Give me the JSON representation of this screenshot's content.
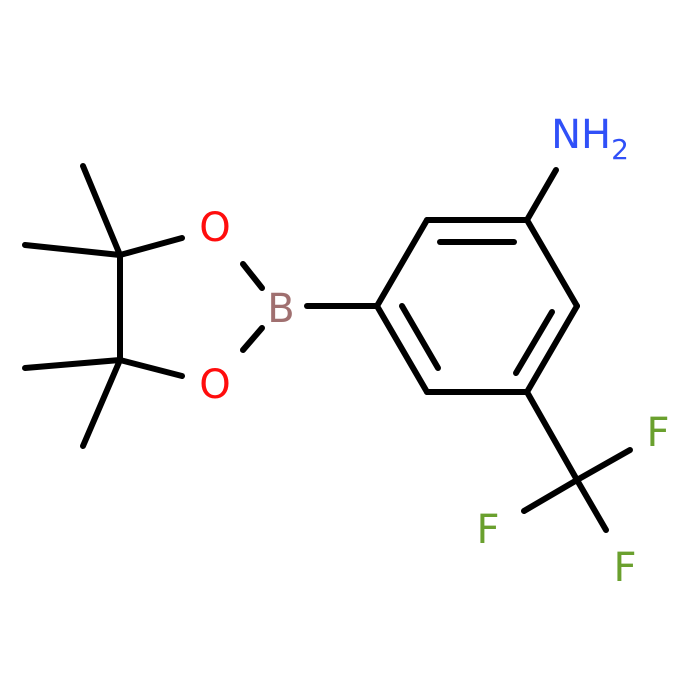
{
  "molecule": {
    "atoms": [
      {
        "label": "NH",
        "sub": "2",
        "color": "#3050f8"
      },
      {
        "label": "B",
        "color": "#a07070"
      },
      {
        "label": "O",
        "color": "#ff0d0d"
      },
      {
        "label": "O",
        "color": "#ff0d0d"
      },
      {
        "label": "F",
        "color": "#6aa02e"
      },
      {
        "label": "F",
        "color": "#6aa02e"
      },
      {
        "label": "F",
        "color": "#6aa02e"
      }
    ]
  }
}
